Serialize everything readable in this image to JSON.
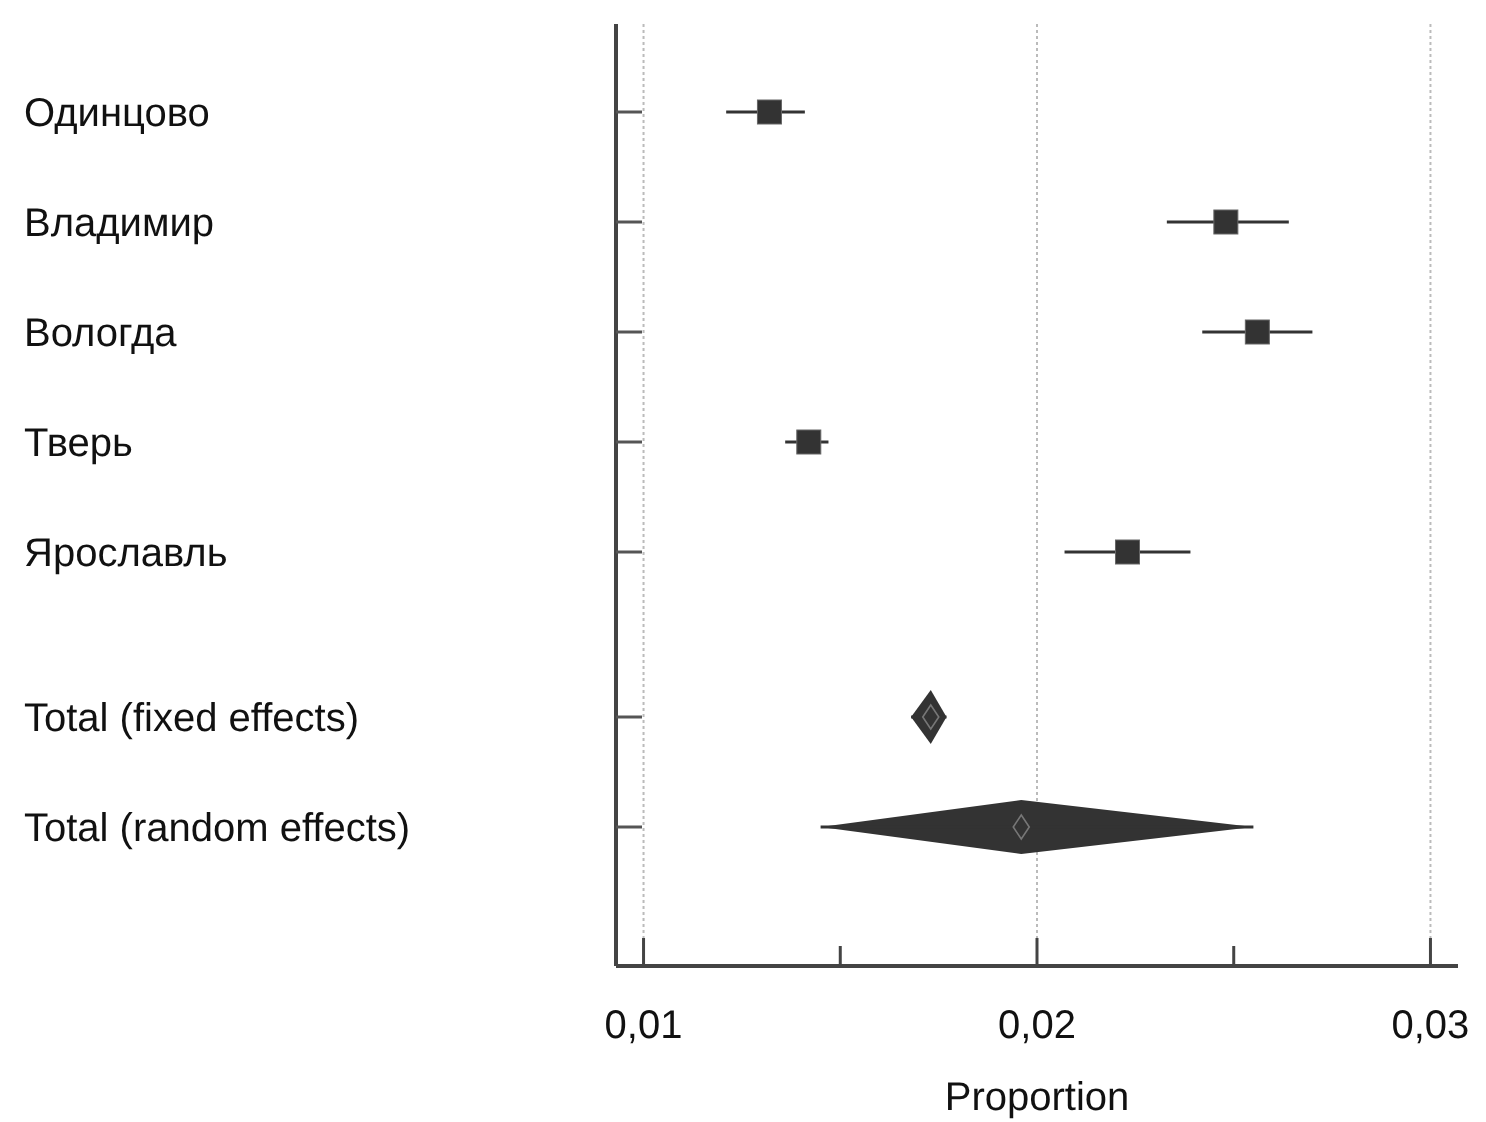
{
  "chart_data": {
    "type": "scatter",
    "orientation": "horizontal",
    "xlabel": "Proportion",
    "categories": [
      "Одинцово",
      "Владимир",
      "Вологда",
      "Тверь",
      "Ярославль",
      "Total (fixed effects)",
      "Total (random effects)"
    ],
    "series": [
      {
        "marker": "square",
        "color": "#333333",
        "values": [
          0.0132,
          0.0248,
          0.0256,
          0.0142,
          0.0223,
          null,
          null
        ],
        "errors": [
          [
            0.0121,
            0.0141
          ],
          [
            0.0233,
            0.0264
          ],
          [
            0.0242,
            0.027
          ],
          [
            0.0136,
            0.0147
          ],
          [
            0.0207,
            0.0239
          ],
          null,
          null
        ]
      },
      {
        "marker": "diamond",
        "color": "#333333",
        "values": [
          null,
          null,
          null,
          null,
          null,
          0.0173,
          0.0196
        ],
        "errors": [
          null,
          null,
          null,
          null,
          null,
          [
            0.0168,
            0.0177
          ],
          [
            0.0145,
            0.0255
          ]
        ]
      }
    ],
    "xlim": [
      0.0093,
      0.0307
    ],
    "xticks": [
      {
        "value": 0.01,
        "label": "0,01"
      },
      {
        "value": 0.015,
        "label": null
      },
      {
        "value": 0.02,
        "label": "0,02"
      },
      {
        "value": 0.025,
        "label": null
      },
      {
        "value": 0.03,
        "label": "0,03"
      }
    ],
    "grid": "x"
  }
}
